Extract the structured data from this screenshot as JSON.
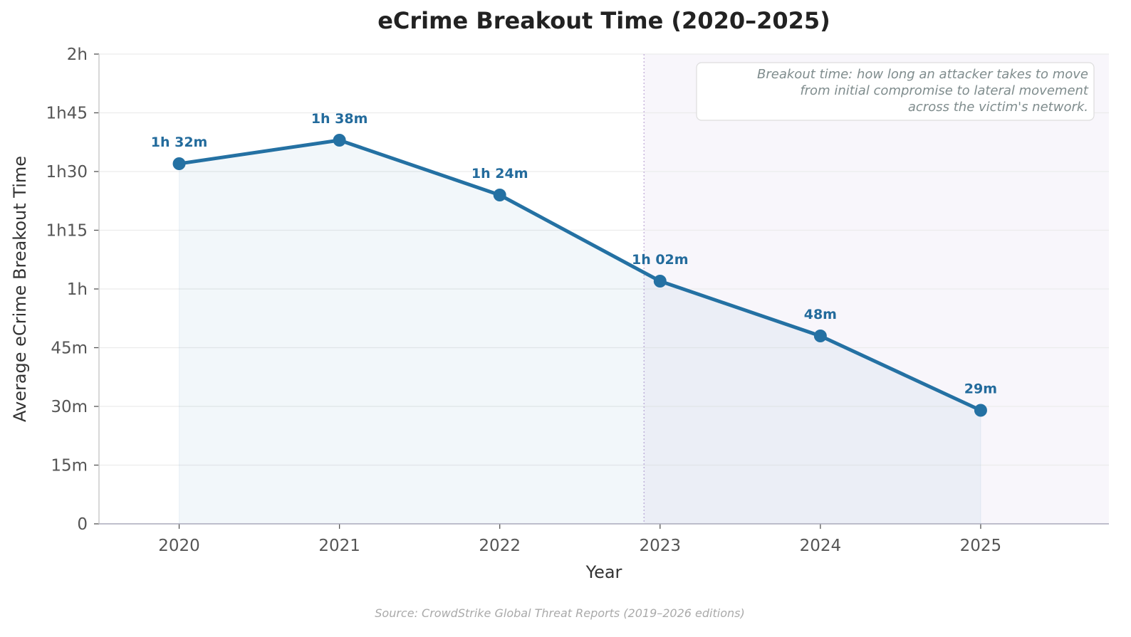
{
  "chart_data": {
    "type": "line",
    "title": "eCrime Breakout Time (2020–2025)",
    "xlabel": "Year",
    "ylabel": "Average eCrime Breakout Time",
    "x": [
      2020,
      2021,
      2022,
      2023,
      2024,
      2025
    ],
    "x_tick_labels": [
      "2020",
      "2021",
      "2022",
      "2023",
      "2024",
      "2025"
    ],
    "series": [
      {
        "values_minutes": [
          92,
          98,
          84,
          62,
          48,
          29
        ],
        "data_labels": [
          "1h 32m",
          "1h 38m",
          "1h 24m",
          "1h 02m",
          "48m",
          "29m"
        ],
        "color": "#2471a3",
        "fill_under": true
      }
    ],
    "xlim": [
      2019.5,
      2025.8
    ],
    "ylim_minutes": [
      0,
      120
    ],
    "y_ticks_minutes": [
      0,
      15,
      30,
      45,
      60,
      75,
      90,
      105,
      120
    ],
    "y_tick_labels": [
      "0",
      "15m",
      "30m",
      "45m",
      "1h",
      "1h15",
      "1h30",
      "1h45",
      "2h"
    ],
    "grid": "horizontal",
    "shaded_region_start_x": 2022.9,
    "shaded_region_color": "#f8f6fb",
    "annotation": [
      "Breakout time: how long an attacker takes to move",
      "from initial compromise to lateral movement",
      "across the victim's network."
    ],
    "annotation_placement": "top-right",
    "source": "Source: CrowdStrike Global Threat Reports (2019–2026 editions)"
  }
}
